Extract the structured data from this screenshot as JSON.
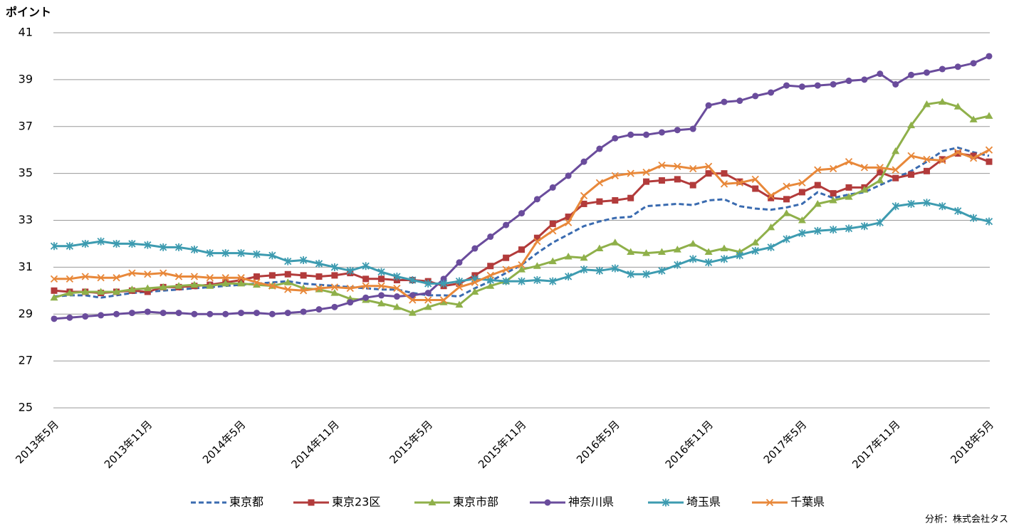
{
  "chart_data": {
    "type": "line",
    "y_axis_label": "ポイント",
    "source": "分析：株式会社タス",
    "categories": [
      "2013年5月",
      null,
      null,
      null,
      null,
      null,
      "2013年11月",
      null,
      null,
      null,
      null,
      null,
      "2014年5月",
      null,
      null,
      null,
      null,
      null,
      "2014年11月",
      null,
      null,
      null,
      null,
      null,
      "2015年5月",
      null,
      null,
      null,
      null,
      null,
      "2015年11月",
      null,
      null,
      null,
      null,
      null,
      "2016年5月",
      null,
      null,
      null,
      null,
      null,
      "2016年11月",
      null,
      null,
      null,
      null,
      null,
      "2017年5月",
      null,
      null,
      null,
      null,
      null,
      "2017年11月",
      null,
      null,
      null,
      null,
      null,
      "2018年5月"
    ],
    "ylim": [
      25,
      41
    ],
    "yticks": [
      25,
      27,
      29,
      31,
      33,
      35,
      37,
      39,
      41
    ],
    "grid": true,
    "legend": "bottom",
    "series": [
      {
        "name": "東京都",
        "color": "#3a6bb0",
        "style": "dashed",
        "marker": "none",
        "values": [
          29.75,
          29.8,
          29.8,
          29.7,
          29.8,
          29.9,
          29.95,
          30.0,
          30.05,
          30.1,
          30.15,
          30.2,
          30.25,
          30.3,
          30.35,
          30.4,
          30.3,
          30.25,
          30.2,
          30.15,
          30.1,
          30.05,
          30.05,
          29.9,
          29.8,
          29.8,
          29.75,
          30.1,
          30.4,
          30.75,
          31.1,
          31.6,
          32.05,
          32.4,
          32.75,
          32.95,
          33.1,
          33.15,
          33.6,
          33.65,
          33.7,
          33.65,
          33.85,
          33.9,
          33.6,
          33.5,
          33.45,
          33.55,
          33.7,
          34.2,
          33.95,
          34.1,
          34.2,
          34.5,
          34.8,
          35.1,
          35.5,
          35.95,
          36.1,
          35.9,
          35.75
        ]
      },
      {
        "name": "東京23区",
        "color": "#b23b3b",
        "style": "solid",
        "marker": "square",
        "values": [
          30.0,
          29.95,
          29.95,
          29.9,
          29.95,
          30.0,
          29.95,
          30.15,
          30.15,
          30.2,
          30.25,
          30.35,
          30.45,
          30.6,
          30.65,
          30.7,
          30.65,
          30.6,
          30.65,
          30.75,
          30.5,
          30.5,
          30.45,
          30.45,
          30.4,
          30.2,
          30.3,
          30.65,
          31.05,
          31.4,
          31.75,
          32.25,
          32.85,
          33.15,
          33.7,
          33.8,
          33.85,
          33.95,
          34.65,
          34.7,
          34.75,
          34.5,
          35.0,
          35.0,
          34.65,
          34.35,
          33.95,
          33.9,
          34.2,
          34.5,
          34.15,
          34.4,
          34.4,
          35.05,
          34.8,
          34.95,
          35.1,
          35.6,
          35.85,
          35.75,
          35.5
        ]
      },
      {
        "name": "東京市部",
        "color": "#8fb04a",
        "style": "solid",
        "marker": "triangle",
        "values": [
          29.7,
          29.9,
          29.95,
          29.95,
          29.95,
          30.05,
          30.1,
          30.15,
          30.2,
          30.25,
          30.2,
          30.3,
          30.3,
          30.25,
          30.2,
          30.35,
          30.1,
          30.05,
          29.9,
          29.65,
          29.6,
          29.45,
          29.3,
          29.05,
          29.3,
          29.5,
          29.4,
          29.95,
          30.2,
          30.4,
          30.9,
          31.05,
          31.25,
          31.45,
          31.4,
          31.8,
          32.05,
          31.65,
          31.6,
          31.65,
          31.75,
          32.0,
          31.65,
          31.8,
          31.65,
          32.05,
          32.7,
          33.3,
          33.0,
          33.7,
          33.85,
          34.0,
          34.3,
          34.7,
          35.95,
          37.05,
          37.95,
          38.05,
          37.85,
          37.3,
          37.45
        ]
      },
      {
        "name": "神奈川県",
        "color": "#6a4c9c",
        "style": "solid",
        "marker": "circle",
        "values": [
          28.8,
          28.85,
          28.9,
          28.95,
          29.0,
          29.05,
          29.1,
          29.05,
          29.05,
          29.0,
          29.0,
          29.0,
          29.05,
          29.05,
          29.0,
          29.05,
          29.1,
          29.2,
          29.3,
          29.5,
          29.7,
          29.8,
          29.75,
          29.8,
          29.9,
          30.5,
          31.2,
          31.8,
          32.3,
          32.8,
          33.3,
          33.9,
          34.4,
          34.9,
          35.5,
          36.05,
          36.5,
          36.65,
          36.65,
          36.75,
          36.85,
          36.9,
          37.9,
          38.05,
          38.1,
          38.3,
          38.45,
          38.75,
          38.7,
          38.75,
          38.8,
          38.95,
          39.0,
          39.25,
          38.8,
          39.2,
          39.3,
          39.45,
          39.55,
          39.7,
          40.0
        ]
      },
      {
        "name": "埼玉県",
        "color": "#3d9bb0",
        "style": "solid",
        "marker": "asterisk",
        "values": [
          31.9,
          31.9,
          32.0,
          32.1,
          32.0,
          32.0,
          31.95,
          31.85,
          31.85,
          31.75,
          31.6,
          31.6,
          31.6,
          31.55,
          31.5,
          31.25,
          31.3,
          31.15,
          31.0,
          30.85,
          31.05,
          30.8,
          30.6,
          30.45,
          30.3,
          30.3,
          30.4,
          30.5,
          30.45,
          30.4,
          30.4,
          30.45,
          30.4,
          30.6,
          30.9,
          30.85,
          30.95,
          30.7,
          30.7,
          30.85,
          31.1,
          31.35,
          31.2,
          31.35,
          31.5,
          31.7,
          31.85,
          32.2,
          32.45,
          32.55,
          32.6,
          32.65,
          32.75,
          32.9,
          33.6,
          33.7,
          33.75,
          33.6,
          33.4,
          33.1,
          32.95
        ]
      },
      {
        "name": "千葉県",
        "color": "#e8883a",
        "style": "solid",
        "marker": "x",
        "values": [
          30.5,
          30.5,
          30.6,
          30.55,
          30.55,
          30.75,
          30.7,
          30.75,
          30.6,
          30.6,
          30.55,
          30.55,
          30.55,
          30.35,
          30.2,
          30.05,
          30.0,
          30.1,
          30.15,
          30.1,
          30.2,
          30.2,
          30.1,
          29.6,
          29.6,
          29.6,
          30.15,
          30.35,
          30.65,
          30.9,
          31.1,
          32.1,
          32.55,
          32.9,
          34.05,
          34.6,
          34.9,
          35.0,
          35.05,
          35.35,
          35.3,
          35.2,
          35.3,
          34.55,
          34.6,
          34.75,
          34.05,
          34.45,
          34.6,
          35.15,
          35.2,
          35.5,
          35.25,
          35.25,
          35.15,
          35.75,
          35.6,
          35.55,
          35.9,
          35.65,
          36.0
        ]
      }
    ]
  }
}
